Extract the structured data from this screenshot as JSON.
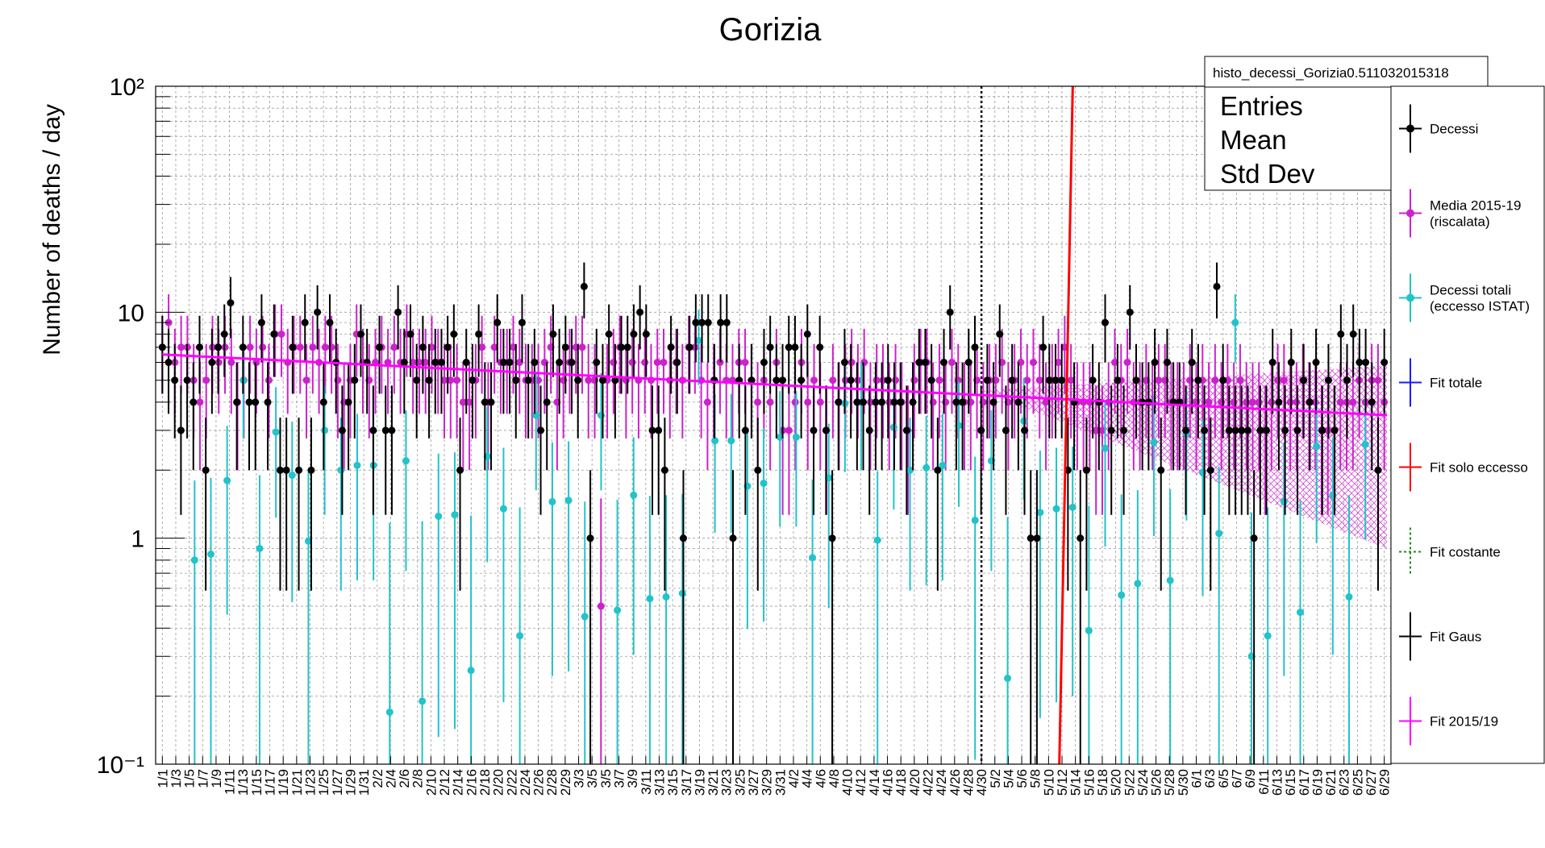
{
  "chart_data": {
    "type": "scatter",
    "title": "Gorizia",
    "ylabel": "Number of deaths / day",
    "xlabel": "",
    "yscale": "log",
    "ylim": [
      0.1,
      100
    ],
    "y_ticks": [
      {
        "value": 0.1,
        "label": "10⁻¹"
      },
      {
        "value": 1,
        "label": "1"
      },
      {
        "value": 10,
        "label": "10"
      },
      {
        "value": 100,
        "label": "10²"
      }
    ],
    "grid": true,
    "x_tick_labels": [
      "1/1",
      "1/3",
      "1/5",
      "1/7",
      "1/9",
      "1/11",
      "1/13",
      "1/15",
      "1/17",
      "1/19",
      "1/21",
      "1/23",
      "1/25",
      "1/27",
      "1/29",
      "1/31",
      "2/2",
      "2/4",
      "2/6",
      "2/8",
      "2/10",
      "2/12",
      "2/14",
      "2/16",
      "2/18",
      "2/20",
      "2/22",
      "2/24",
      "2/26",
      "2/28",
      "2/29",
      "3/3",
      "3/5",
      "3/5",
      "3/7",
      "3/9",
      "3/11",
      "3/13",
      "3/15",
      "3/17",
      "3/19",
      "3/21",
      "3/23",
      "3/25",
      "3/27",
      "3/29",
      "3/31",
      "4/2",
      "4/4",
      "4/6",
      "4/8",
      "4/10",
      "4/12",
      "4/14",
      "4/16",
      "4/18",
      "4/20",
      "4/22",
      "4/24",
      "4/26",
      "4/28",
      "4/30",
      "5/2",
      "5/4",
      "5/6",
      "5/8",
      "5/10",
      "5/12",
      "5/14",
      "5/16",
      "5/18",
      "5/20",
      "5/22",
      "5/24",
      "5/26",
      "5/28",
      "5/30",
      "6/1",
      "6/3",
      "6/5",
      "6/7",
      "6/9",
      "6/11",
      "6/13",
      "6/15",
      "6/17",
      "6/19",
      "6/21",
      "6/23",
      "6/25",
      "6/27",
      "6/29"
    ],
    "vline_label_index": 61,
    "stats_box": {
      "name": "histo_decessi_Gorizia0.511032015318",
      "rows": [
        "Entries",
        "Mean",
        "Std Dev"
      ]
    },
    "legend_position": "right",
    "legend": [
      {
        "label": "Decessi",
        "color": "#000000",
        "marker": true,
        "style": "solid"
      },
      {
        "label": "Media 2015-19 (riscalata)",
        "color": "#cc22cc",
        "marker": true,
        "style": "solid"
      },
      {
        "label": "Decessi totali (eccesso ISTAT)",
        "color": "#22c3c9",
        "marker": true,
        "style": "solid"
      },
      {
        "label": "Fit totale",
        "color": "#1a1aff",
        "marker": false,
        "style": "solid"
      },
      {
        "label": "Fit solo eccesso",
        "color": "#ff0000",
        "marker": false,
        "style": "solid"
      },
      {
        "label": "Fit costante",
        "color": "#1a8c1a",
        "marker": false,
        "style": "dotted"
      },
      {
        "label": "Fit Gaus",
        "color": "#000000",
        "marker": false,
        "style": "solid"
      },
      {
        "label": "Fit 2015/19",
        "color": "#ff00ff",
        "marker": false,
        "style": "solid"
      }
    ],
    "series": [
      {
        "name": "Decessi",
        "color": "#000000",
        "values": [
          7,
          6,
          5,
          3,
          5,
          4,
          7,
          2,
          6,
          7,
          8,
          11,
          4,
          7,
          4,
          4,
          9,
          4,
          8,
          2,
          2,
          7,
          2,
          9,
          2,
          10,
          4,
          9,
          6,
          3,
          4,
          5,
          8,
          6,
          3,
          7,
          3,
          3,
          10,
          6,
          8,
          5,
          7,
          5,
          6,
          6,
          7,
          8,
          2,
          6,
          5,
          8,
          4,
          4,
          9,
          6,
          6,
          5,
          9,
          5,
          6,
          3,
          4,
          8,
          6,
          7,
          6,
          5,
          13,
          1,
          6,
          5,
          8,
          5,
          7,
          7,
          8,
          10,
          8,
          3,
          3,
          2,
          7,
          6,
          1,
          7,
          9,
          9,
          9,
          5,
          9,
          9,
          1,
          5,
          3,
          5,
          2,
          6,
          7,
          5,
          5,
          7,
          7,
          5,
          8,
          3,
          7,
          3,
          1,
          4,
          6,
          5,
          4,
          4,
          3,
          4,
          4,
          5,
          4,
          4,
          3,
          4,
          6,
          6,
          5,
          2,
          6,
          10,
          4,
          4,
          6,
          7,
          3,
          5,
          4,
          8,
          3,
          5,
          4,
          3,
          1,
          1,
          7,
          5,
          5,
          5,
          2,
          4,
          1,
          2,
          5,
          4,
          9,
          3,
          5,
          3,
          10,
          5,
          4,
          4,
          6,
          2,
          6,
          4,
          4,
          3,
          6,
          5,
          3,
          2,
          13,
          5,
          3,
          3,
          3,
          3,
          1,
          3,
          3,
          6,
          4,
          3,
          6,
          3,
          5,
          4,
          6,
          3,
          5,
          3,
          8,
          5,
          8,
          6,
          6,
          4,
          2,
          6
        ]
      },
      {
        "name": "Media 2015-19 (riscalata)",
        "color": "#cc22cc",
        "values": [
          7,
          9,
          6,
          7,
          7,
          5,
          4,
          5,
          7,
          6,
          7,
          6,
          4,
          5,
          7,
          6,
          7,
          5,
          8,
          8,
          6,
          7,
          7,
          5,
          7,
          6,
          7,
          7,
          5,
          4,
          5,
          8,
          6,
          5,
          6,
          7,
          6,
          7,
          6,
          8,
          6,
          6,
          6,
          7,
          6,
          5,
          5,
          5,
          4,
          4,
          5,
          7,
          4,
          7,
          6,
          6,
          7,
          6,
          5,
          5,
          5,
          6,
          7,
          4,
          5,
          6,
          7,
          7,
          5,
          5,
          0.5,
          5,
          6,
          7,
          5,
          6,
          5,
          6,
          5,
          6,
          6,
          5,
          6,
          5,
          7,
          7,
          5,
          4,
          5,
          6,
          5,
          5,
          6,
          6,
          5,
          4,
          5,
          4,
          6,
          3,
          3,
          4,
          6,
          4,
          5,
          4,
          3,
          5,
          4,
          5,
          6,
          5,
          6,
          4,
          5,
          5,
          4,
          5,
          4,
          3,
          5,
          6,
          6,
          4,
          5,
          4,
          6,
          5,
          4,
          4,
          5,
          4,
          5,
          5,
          6,
          4,
          5,
          6,
          5,
          6,
          5,
          4,
          5,
          6,
          7,
          5,
          4,
          4,
          4,
          3,
          3,
          4,
          6,
          5,
          6,
          4,
          4,
          5,
          4,
          5,
          5,
          4,
          4,
          4,
          5,
          4,
          5,
          4,
          5,
          4,
          5,
          4,
          5,
          4,
          4,
          4,
          3,
          4,
          5,
          5,
          4,
          4,
          5,
          4,
          4,
          3,
          3,
          3,
          4,
          4,
          4,
          5,
          4,
          5,
          5,
          4
        ]
      },
      {
        "name": "Decessi totali (eccesso ISTAT)",
        "color": "#22c3c9",
        "values": [
          0.8,
          0.85,
          1.8,
          5,
          0.9,
          2.95,
          1.9,
          0.97,
          3,
          2,
          2.1,
          2.1,
          0.17,
          2.2,
          0.19,
          1.25,
          1.27,
          0.26,
          2.3,
          1.35,
          0.37,
          3.5,
          1.45,
          1.47,
          0.45,
          3.5,
          0.48,
          1.55,
          0.54,
          0.55,
          0.57,
          7.5,
          2.7,
          2.7,
          1.7,
          1.75,
          2.8,
          2.8,
          0.82,
          1.85,
          3.95,
          4,
          0.98,
          3.1,
          2,
          2.05,
          2.1,
          3.15,
          1.2,
          2.2,
          0.24,
          3.3,
          1.3,
          1.35,
          1.37,
          0.39,
          2.5,
          0.56,
          0.63,
          2.65,
          0.65,
          2.9,
          1.95,
          1.05,
          9,
          0.3,
          0.37,
          1.45,
          0.47,
          2.55,
          1.55,
          0.55,
          2.6
        ]
      },
      {
        "name": "Fit 2015/19",
        "color": "#ff00ff",
        "band_start": 4.5,
        "band_end_low": 0.9,
        "band_end_high": 5.8,
        "fit": [
          6.5,
          3.5
        ]
      },
      {
        "name": "Fit solo eccesso",
        "color": "#ff0000",
        "fit": [
          0.1,
          100
        ]
      }
    ]
  }
}
